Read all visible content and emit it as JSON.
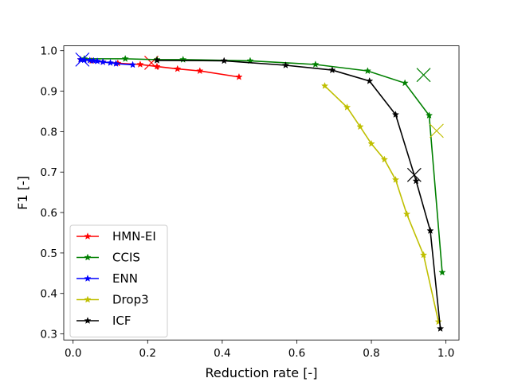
{
  "chart_data": {
    "type": "line",
    "title": "",
    "xlabel": "Reduction rate [-]",
    "ylabel": "F1 [-]",
    "xlim": [
      -0.025,
      1.035
    ],
    "ylim": [
      0.285,
      1.012
    ],
    "xticks": [
      0.0,
      0.2,
      0.4,
      0.6,
      0.8,
      1.0
    ],
    "xtick_labels": [
      "0.0",
      "0.2",
      "0.4",
      "0.6",
      "0.8",
      "1.0"
    ],
    "yticks": [
      0.3,
      0.4,
      0.5,
      0.6,
      0.7,
      0.8,
      0.9,
      1.0
    ],
    "ytick_labels": [
      "0.3",
      "0.4",
      "0.5",
      "0.6",
      "0.7",
      "0.8",
      "0.9",
      "1.0"
    ],
    "grid": false,
    "legend_position": "lower-left",
    "series": [
      {
        "name": "HMN-EI",
        "color": "#ff0000",
        "marker": "star",
        "x": [
          0.02,
          0.05,
          0.08,
          0.12,
          0.18,
          0.225,
          0.28,
          0.34,
          0.445
        ],
        "y": [
          0.978,
          0.975,
          0.972,
          0.969,
          0.966,
          0.961,
          0.955,
          0.95,
          0.935
        ],
        "cross": {
          "x": 0.21,
          "y": 0.97
        }
      },
      {
        "name": "CCIS",
        "color": "#008000",
        "marker": "star",
        "x": [
          0.03,
          0.14,
          0.225,
          0.295,
          0.475,
          0.65,
          0.79,
          0.89,
          0.955,
          0.99
        ],
        "y": [
          0.98,
          0.98,
          0.978,
          0.978,
          0.975,
          0.966,
          0.95,
          0.92,
          0.84,
          0.452
        ],
        "cross": {
          "x": 0.94,
          "y": 0.94
        }
      },
      {
        "name": "ENN",
        "color": "#0000ff",
        "marker": "star",
        "x": [
          0.02,
          0.03,
          0.045,
          0.055,
          0.065,
          0.08,
          0.1,
          0.115,
          0.16
        ],
        "y": [
          0.978,
          0.977,
          0.976,
          0.975,
          0.974,
          0.972,
          0.97,
          0.968,
          0.965
        ],
        "cross": {
          "x": 0.025,
          "y": 0.978
        }
      },
      {
        "name": "Drop3",
        "color": "#bfbf00",
        "marker": "star",
        "x": [
          0.675,
          0.735,
          0.77,
          0.8,
          0.835,
          0.865,
          0.895,
          0.94,
          0.98
        ],
        "y": [
          0.913,
          0.86,
          0.812,
          0.77,
          0.731,
          0.681,
          0.596,
          0.495,
          0.33
        ],
        "cross": {
          "x": 0.975,
          "y": 0.802
        }
      },
      {
        "name": "ICF",
        "color": "#000000",
        "marker": "star",
        "x": [
          0.225,
          0.405,
          0.57,
          0.695,
          0.795,
          0.865,
          0.92,
          0.958,
          0.985
        ],
        "y": [
          0.976,
          0.975,
          0.964,
          0.952,
          0.925,
          0.842,
          0.678,
          0.555,
          0.313
        ],
        "cross": {
          "x": 0.915,
          "y": 0.693
        }
      }
    ]
  }
}
